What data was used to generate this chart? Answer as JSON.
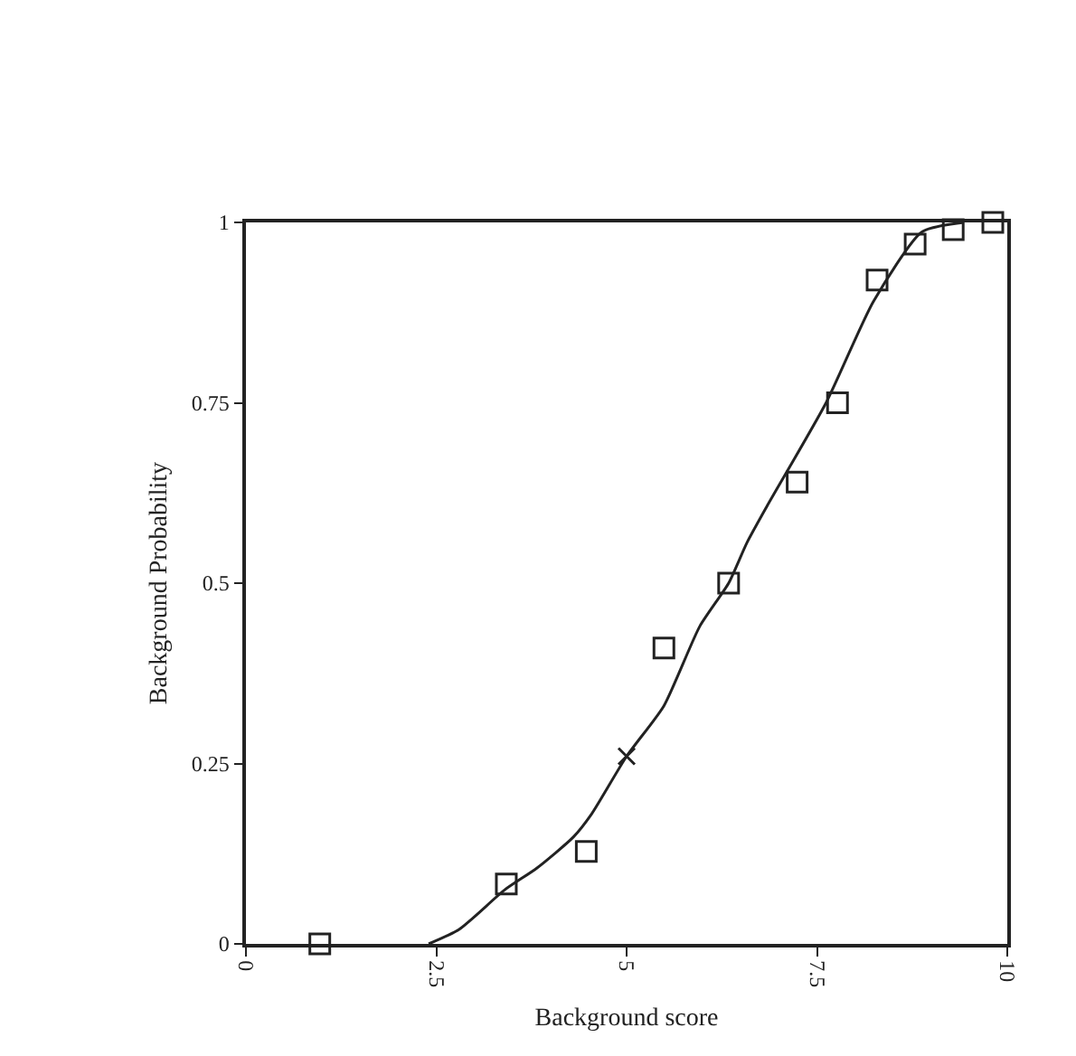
{
  "chart_data": {
    "type": "scatter",
    "xlabel": "Background score",
    "ylabel": "Background Probability",
    "xlim": [
      0,
      10
    ],
    "ylim": [
      0,
      1
    ],
    "xticks": [
      0,
      2.5,
      5,
      7.5,
      10
    ],
    "yticks": [
      0,
      0.25,
      0.5,
      0.75,
      1
    ],
    "legend": false,
    "series": [
      {
        "marker": "square",
        "color": "#222222",
        "x": [
          0.97,
          3.42,
          4.47,
          5.49,
          6.34,
          7.24,
          7.77,
          8.29,
          8.79,
          9.29,
          9.81
        ],
        "values": [
          0,
          0.083,
          0.128,
          0.41,
          0.5,
          0.64,
          0.75,
          0.92,
          0.97,
          0.99,
          1.0
        ]
      },
      {
        "type": "line",
        "marker": "none",
        "line_style": "solid",
        "color": "#222222",
        "x": [
          2.4,
          2.8,
          3.4,
          3.82,
          4.3,
          4.54,
          5.0,
          5.49,
          5.96,
          6.34,
          6.58,
          6.84,
          7.62,
          8.24,
          8.88,
          9.43
        ],
        "values": [
          0,
          0.02,
          0.075,
          0.105,
          0.148,
          0.18,
          0.26,
          0.33,
          0.44,
          0.5,
          0.556,
          0.606,
          0.75,
          0.89,
          0.987,
          1.0
        ]
      },
      {
        "marker": "cross",
        "color": "#222222",
        "x": [
          5.0
        ],
        "values": [
          0.26
        ]
      }
    ]
  }
}
